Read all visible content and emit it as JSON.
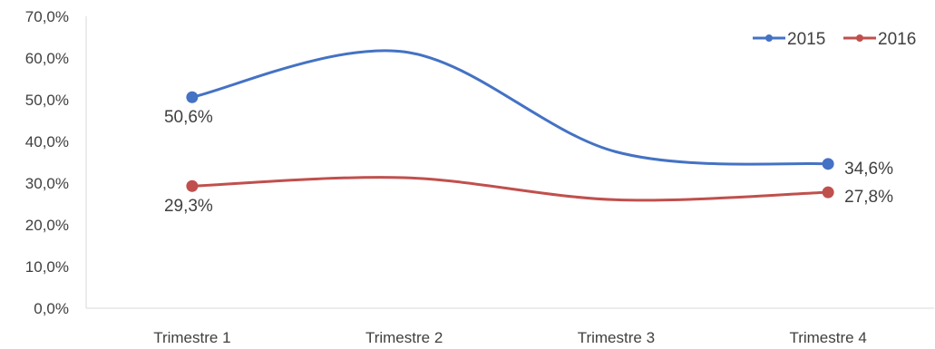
{
  "chart_data": {
    "type": "line",
    "title": "",
    "xlabel": "",
    "ylabel": "",
    "categories": [
      "Trimestre 1",
      "Trimestre 2",
      "Trimestre 3",
      "Trimestre 4"
    ],
    "ylim": [
      0,
      70
    ],
    "y_ticks": [
      "0,0%",
      "10,0%",
      "20,0%",
      "30,0%",
      "40,0%",
      "50,0%",
      "60,0%",
      "70,0%"
    ],
    "grid": false,
    "smooth": true,
    "legend_position": "top-right",
    "series": [
      {
        "name": "2015",
        "color": "#4472C4",
        "values": [
          50.6,
          61.5,
          37.5,
          34.6
        ],
        "data_labels": [
          "50,6%",
          "",
          "",
          "34,6%"
        ]
      },
      {
        "name": "2016",
        "color": "#C0504D",
        "values": [
          29.3,
          31.3,
          26.0,
          27.8
        ],
        "data_labels": [
          "29,3%",
          "",
          "",
          "27,8%"
        ]
      }
    ]
  }
}
